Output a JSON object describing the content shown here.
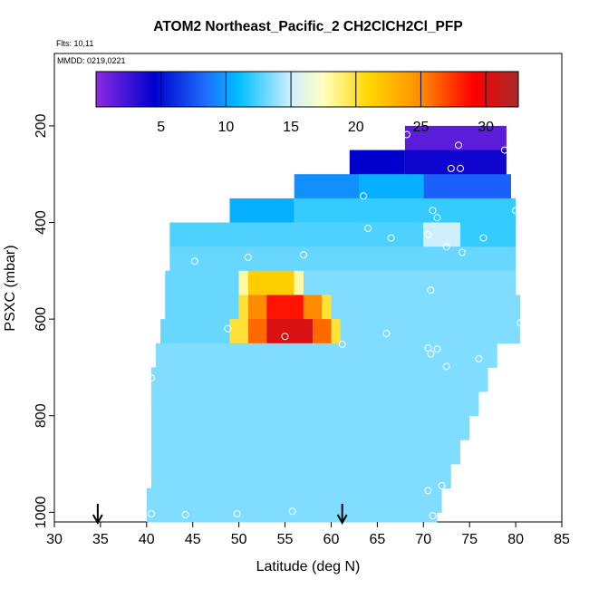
{
  "chart_data": {
    "type": "heatmap",
    "title": "ATOM2 Northeast_Pacific_2 CH2ClCH2Cl_PFP",
    "flights_label": "Flts: 10,11",
    "mmdd_label": "MMDD: 0219,0221",
    "xlabel": "Latitude (deg N)",
    "ylabel": "PSXC (mbar)",
    "xlim": [
      30,
      85
    ],
    "ylim": [
      1020,
      50
    ],
    "x_ticks": [
      "30",
      "35",
      "40",
      "45",
      "50",
      "55",
      "60",
      "65",
      "70",
      "75",
      "80",
      "85"
    ],
    "x_tick_values": [
      30,
      35,
      40,
      45,
      50,
      55,
      60,
      65,
      70,
      75,
      80,
      85
    ],
    "y_ticks": [
      "200",
      "400",
      "600",
      "800",
      "1000"
    ],
    "y_tick_values": [
      200,
      400,
      600,
      800,
      1000
    ],
    "colorbar": {
      "range": [
        0,
        32.5
      ],
      "tick_labels": [
        "5",
        "10",
        "15",
        "20",
        "25",
        "30"
      ],
      "tick_values": [
        5,
        10,
        15,
        20,
        25,
        30
      ],
      "stops": [
        "#8a2be2",
        "#0000cd",
        "#1e6fff",
        "#00bfff",
        "#cfefff",
        "#ffffc0",
        "#ffd700",
        "#ff8c00",
        "#ff0000",
        "#a52a2a"
      ],
      "stop_values": [
        0,
        4.5,
        8.5,
        11,
        15,
        17.5,
        21,
        25,
        29,
        32.5
      ]
    },
    "arrows": [
      34.7,
      61.2
    ],
    "bands": [
      {
        "p_top": 200,
        "p_bot": 250,
        "lat_min": 68,
        "lat_max": 79,
        "segments": [
          [
            68,
            79,
            1.5
          ]
        ]
      },
      {
        "p_top": 250,
        "p_bot": 300,
        "lat_min": 62,
        "lat_max": 79,
        "segments": [
          [
            62,
            68,
            4.5
          ],
          [
            68,
            79,
            4
          ]
        ]
      },
      {
        "p_top": 300,
        "p_bot": 350,
        "lat_min": 56,
        "lat_max": 79.5,
        "segments": [
          [
            56,
            63,
            9.5
          ],
          [
            63,
            70,
            10.5
          ],
          [
            70,
            79.5,
            8
          ]
        ]
      },
      {
        "p_top": 350,
        "p_bot": 400,
        "lat_min": 49,
        "lat_max": 80,
        "segments": [
          [
            49,
            56,
            10.5
          ],
          [
            56,
            80,
            12
          ]
        ]
      },
      {
        "p_top": 400,
        "p_bot": 450,
        "lat_min": 42.5,
        "lat_max": 80,
        "segments": [
          [
            42.5,
            70,
            12.5
          ],
          [
            70,
            74,
            15
          ],
          [
            74,
            80,
            12
          ]
        ]
      },
      {
        "p_top": 450,
        "p_bot": 500,
        "lat_min": 42.5,
        "lat_max": 80,
        "segments": [
          [
            42.5,
            80,
            13
          ]
        ]
      },
      {
        "p_top": 500,
        "p_bot": 550,
        "lat_min": 42,
        "lat_max": 80,
        "segments": [
          [
            42,
            50,
            13
          ],
          [
            50,
            51,
            18
          ],
          [
            51,
            56,
            21.5
          ],
          [
            56,
            57,
            18
          ],
          [
            57,
            80,
            13.5
          ]
        ]
      },
      {
        "p_top": 550,
        "p_bot": 600,
        "lat_min": 42,
        "lat_max": 80.5,
        "segments": [
          [
            42,
            50,
            13
          ],
          [
            50,
            51,
            20
          ],
          [
            51,
            53,
            25
          ],
          [
            53,
            57,
            28.5
          ],
          [
            57,
            59,
            25
          ],
          [
            59,
            60,
            20
          ],
          [
            60,
            80.5,
            13.5
          ]
        ]
      },
      {
        "p_top": 600,
        "p_bot": 650,
        "lat_min": 41.5,
        "lat_max": 80.5,
        "segments": [
          [
            41.5,
            49,
            13
          ],
          [
            49,
            51,
            20
          ],
          [
            51,
            53,
            26
          ],
          [
            53,
            58,
            30.5
          ],
          [
            58,
            60,
            26
          ],
          [
            60,
            61,
            20
          ],
          [
            61,
            80.5,
            13.5
          ]
        ]
      },
      {
        "p_top": 650,
        "p_bot": 700,
        "lat_min": 41,
        "lat_max": 78,
        "segments": [
          [
            41,
            78,
            13.5
          ]
        ]
      },
      {
        "p_top": 700,
        "p_bot": 750,
        "lat_min": 40.5,
        "lat_max": 77,
        "segments": [
          [
            40.5,
            77,
            13.5
          ]
        ]
      },
      {
        "p_top": 750,
        "p_bot": 800,
        "lat_min": 40.5,
        "lat_max": 76,
        "segments": [
          [
            40.5,
            76,
            13.5
          ]
        ]
      },
      {
        "p_top": 800,
        "p_bot": 850,
        "lat_min": 40.5,
        "lat_max": 75,
        "segments": [
          [
            40.5,
            75,
            13.5
          ]
        ]
      },
      {
        "p_top": 850,
        "p_bot": 900,
        "lat_min": 40.5,
        "lat_max": 74,
        "segments": [
          [
            40.5,
            74,
            13.5
          ]
        ]
      },
      {
        "p_top": 900,
        "p_bot": 950,
        "lat_min": 40.5,
        "lat_max": 73,
        "segments": [
          [
            40.5,
            73,
            13.5
          ]
        ]
      },
      {
        "p_top": 950,
        "p_bot": 1000,
        "lat_min": 40,
        "lat_max": 72,
        "segments": [
          [
            40,
            72,
            13.5
          ]
        ]
      },
      {
        "p_top": 1000,
        "p_bot": 1020,
        "lat_min": 40,
        "lat_max": 71.5,
        "segments": [
          [
            40,
            71.5,
            13.5
          ]
        ]
      }
    ],
    "points": [
      [
        68.2,
        218
      ],
      [
        73.8,
        240
      ],
      [
        78.8,
        250
      ],
      [
        73.0,
        288
      ],
      [
        74.0,
        288
      ],
      [
        63.5,
        345
      ],
      [
        71.0,
        375
      ],
      [
        80.0,
        375
      ],
      [
        71.5,
        390
      ],
      [
        64.0,
        412
      ],
      [
        66.5,
        432
      ],
      [
        70.5,
        425
      ],
      [
        76.5,
        432
      ],
      [
        72.5,
        450
      ],
      [
        74.2,
        462
      ],
      [
        57.0,
        467
      ],
      [
        45.2,
        480
      ],
      [
        51.0,
        472
      ],
      [
        70.8,
        540
      ],
      [
        48.8,
        620
      ],
      [
        55.0,
        636
      ],
      [
        61.2,
        652
      ],
      [
        66.0,
        630
      ],
      [
        80.5,
        608
      ],
      [
        70.5,
        660
      ],
      [
        70.8,
        672
      ],
      [
        71.5,
        662
      ],
      [
        72.5,
        698
      ],
      [
        76.0,
        682
      ],
      [
        40.5,
        722
      ],
      [
        70.5,
        955
      ],
      [
        72.0,
        945
      ],
      [
        40.5,
        1003
      ],
      [
        44.2,
        1005
      ],
      [
        49.8,
        1003
      ],
      [
        55.8,
        998
      ],
      [
        71.0,
        1007
      ]
    ]
  }
}
